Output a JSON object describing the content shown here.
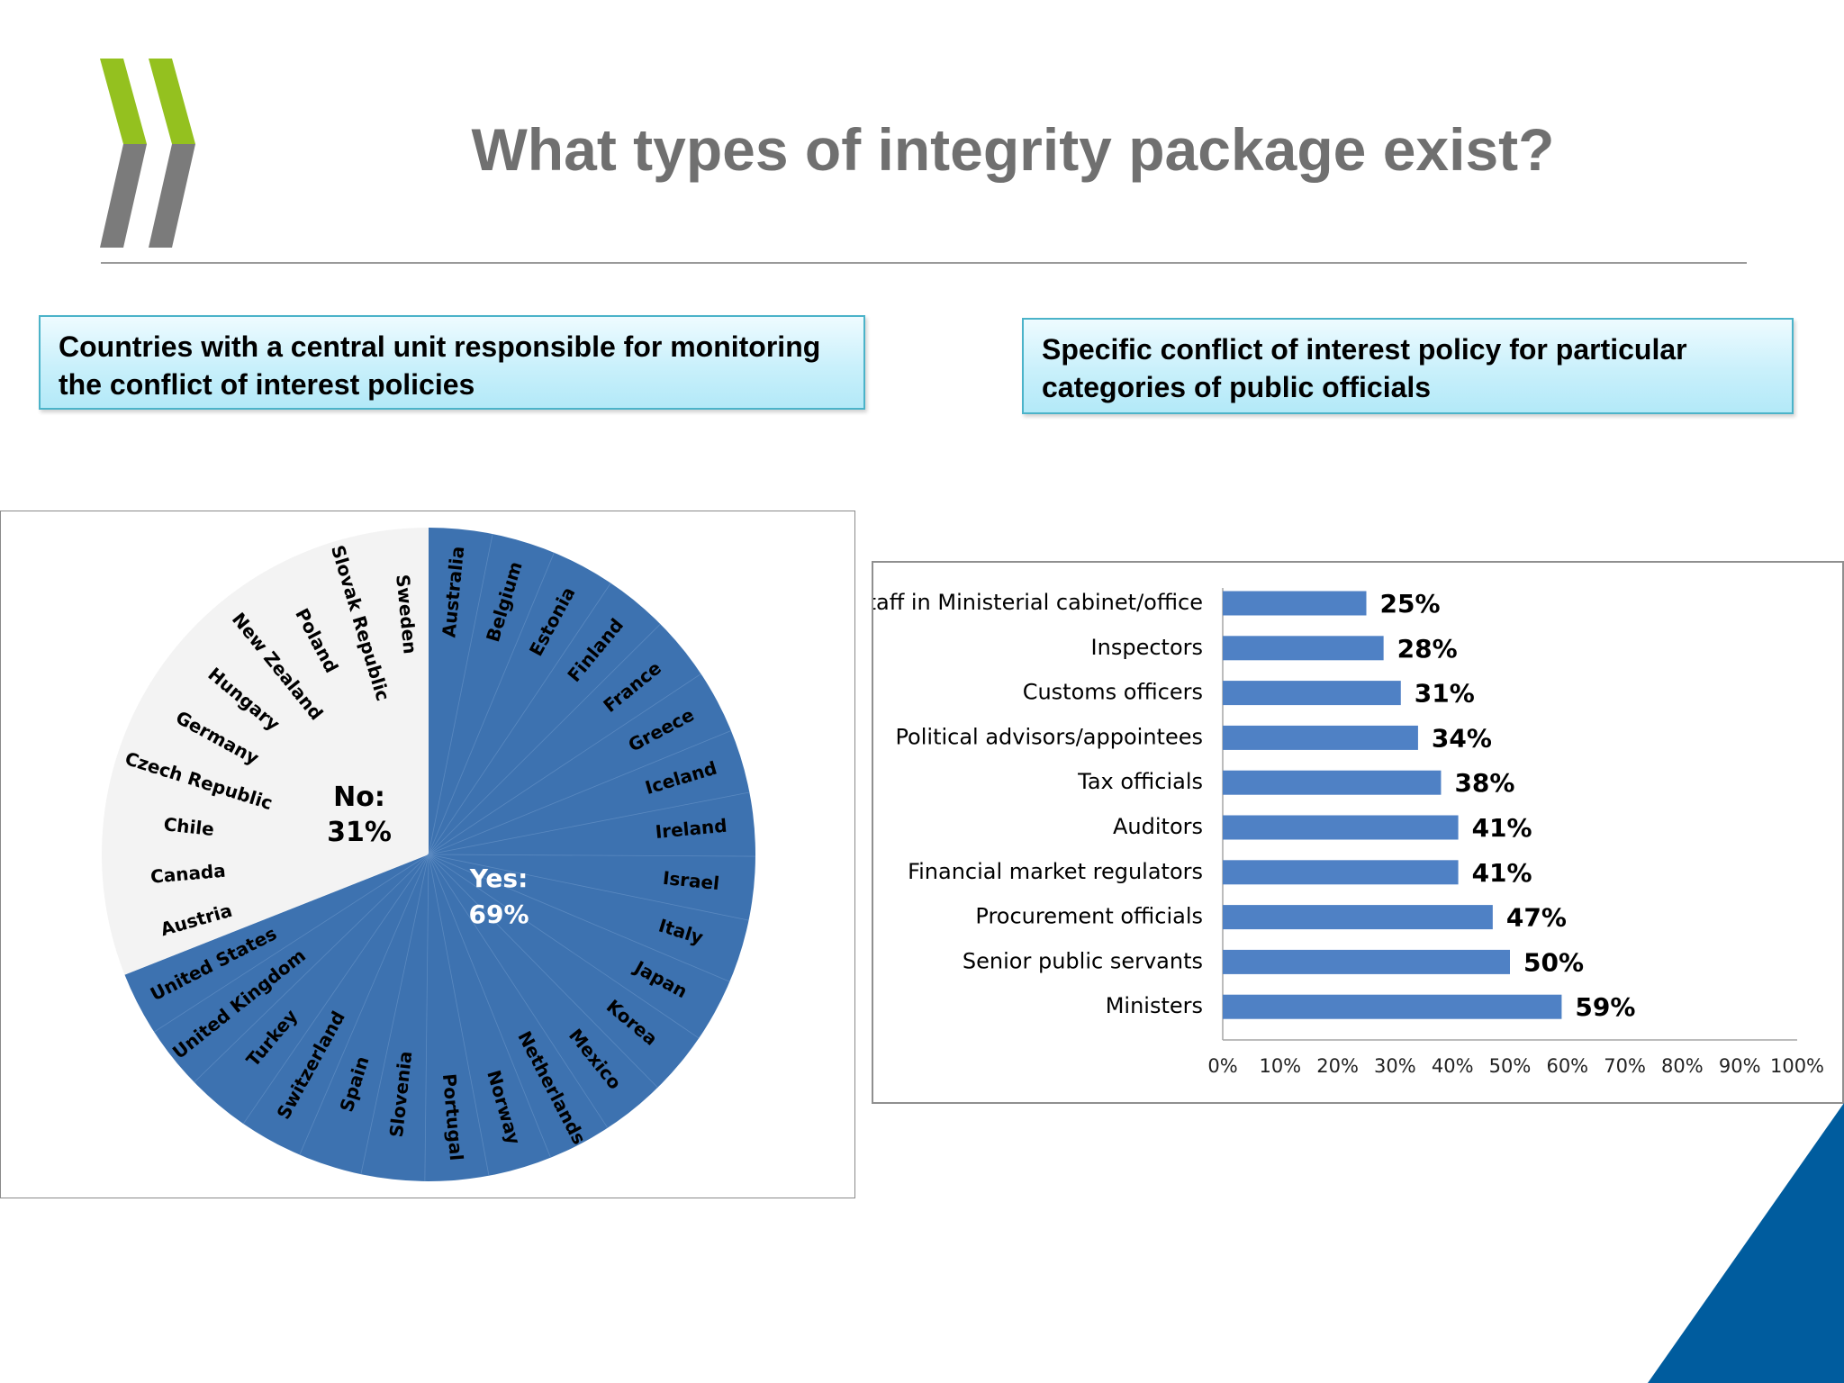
{
  "slide": {
    "title": "What types of integrity package exist?",
    "callout_left": "Countries with a central unit responsible for monitoring the conflict of interest policies",
    "callout_right": "Specific conflict of interest policy for particular categories of public officials",
    "colors": {
      "accent_blue": "#3d72b0",
      "bar_blue": "#4f81c5",
      "logo_green": "#94c11f",
      "logo_gray": "#7b7b7b",
      "corner_blue": "#005c9e"
    }
  },
  "chart_data": [
    {
      "type": "pie",
      "slices": [
        {
          "label": "Yes:",
          "pct_label": "69%",
          "value": 69
        },
        {
          "label": "No:",
          "pct_label": "31%",
          "value": 31
        }
      ],
      "yes_countries": [
        "Australia",
        "Belgium",
        "Estonia",
        "Finland",
        "France",
        "Greece",
        "Iceland",
        "Ireland",
        "Israel",
        "Italy",
        "Japan",
        "Korea",
        "Mexico",
        "Netherlands",
        "Norway",
        "Portugal",
        "Slovenia",
        "Spain",
        "Switzerland",
        "Turkey",
        "United Kingdom",
        "United States"
      ],
      "no_countries": [
        "Austria",
        "Canada",
        "Chile",
        "Czech Republic",
        "Germany",
        "Hungary",
        "New Zealand",
        "Poland",
        "Slovak Republic",
        "Sweden"
      ]
    },
    {
      "type": "bar",
      "orientation": "horizontal",
      "categories": [
        "Staff in Ministerial cabinet/office",
        "Inspectors",
        "Customs officers",
        "Political advisors/appointees",
        "Tax officials",
        "Auditors",
        "Financial market regulators",
        "Procurement officials",
        "Senior public servants",
        "Ministers"
      ],
      "values": [
        25,
        28,
        31,
        34,
        38,
        41,
        41,
        47,
        50,
        59
      ],
      "value_labels": [
        "25%",
        "28%",
        "31%",
        "34%",
        "38%",
        "41%",
        "41%",
        "47%",
        "50%",
        "59%"
      ],
      "xlim": [
        0,
        100
      ],
      "xticks": [
        "0%",
        "10%",
        "20%",
        "30%",
        "40%",
        "50%",
        "60%",
        "70%",
        "80%",
        "90%",
        "100%"
      ],
      "grid": false
    }
  ]
}
